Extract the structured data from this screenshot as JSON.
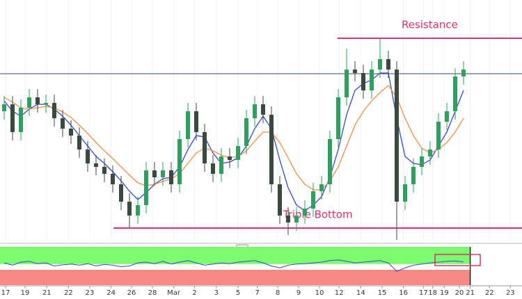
{
  "chart_data": {
    "type": "candlestick",
    "open": [
      185,
      195,
      155,
      190,
      205,
      195,
      197,
      175,
      160,
      150,
      130,
      110,
      105,
      95,
      80,
      55,
      35,
      50,
      100,
      90,
      100,
      80,
      145,
      185,
      155,
      110,
      95,
      120,
      115,
      135,
      175,
      195,
      180,
      80,
      35,
      25,
      35,
      45,
      70,
      80,
      145,
      205,
      245,
      240,
      215,
      245,
      260,
      245,
      55,
      80,
      105,
      120,
      130,
      170,
      185,
      235
    ],
    "high": [
      207,
      207,
      202,
      217,
      217,
      209,
      209,
      187,
      172,
      162,
      142,
      122,
      117,
      107,
      92,
      67,
      62,
      112,
      112,
      112,
      112,
      157,
      197,
      197,
      167,
      122,
      132,
      132,
      147,
      187,
      207,
      207,
      192,
      92,
      47,
      47,
      57,
      82,
      92,
      157,
      217,
      275,
      257,
      252,
      257,
      290,
      272,
      257,
      92,
      117,
      132,
      142,
      182,
      197,
      247,
      257
    ],
    "low": [
      173,
      143,
      143,
      178,
      183,
      183,
      163,
      148,
      138,
      118,
      98,
      93,
      83,
      68,
      43,
      18,
      23,
      38,
      78,
      78,
      68,
      68,
      133,
      143,
      98,
      83,
      83,
      103,
      103,
      123,
      163,
      168,
      68,
      23,
      7,
      13,
      23,
      33,
      58,
      68,
      133,
      193,
      228,
      203,
      203,
      233,
      233,
      0,
      43,
      68,
      93,
      108,
      118,
      158,
      173,
      223
    ],
    "close": [
      195,
      155,
      190,
      205,
      195,
      197,
      175,
      160,
      150,
      130,
      110,
      105,
      95,
      80,
      55,
      35,
      50,
      100,
      90,
      100,
      80,
      145,
      185,
      155,
      110,
      95,
      120,
      115,
      135,
      175,
      195,
      180,
      80,
      35,
      25,
      35,
      45,
      70,
      80,
      145,
      205,
      245,
      240,
      215,
      245,
      260,
      245,
      55,
      80,
      105,
      120,
      130,
      170,
      185,
      235,
      245
    ],
    "up_color": "#2f9e5e",
    "down_color": "#3b4a3f",
    "lines": [
      {
        "color": "#3347d1",
        "values": [
          200,
          185,
          178,
          188,
          195,
          195,
          188,
          178,
          165,
          150,
          135,
          120,
          110,
          98,
          85,
          70,
          58,
          68,
          80,
          88,
          90,
          105,
          130,
          150,
          148,
          125,
          110,
          112,
          118,
          135,
          160,
          178,
          160,
          115,
          75,
          50,
          42,
          50,
          62,
          90,
          130,
          180,
          215,
          225,
          230,
          240,
          240,
          175,
          120,
          110,
          108,
          115,
          135,
          155,
          185,
          215
        ]
      },
      {
        "color": "#ef8f45",
        "values": [
          205,
          198,
          190,
          188,
          190,
          192,
          190,
          184,
          176,
          165,
          153,
          140,
          128,
          117,
          105,
          93,
          82,
          78,
          80,
          84,
          88,
          95,
          110,
          125,
          132,
          128,
          122,
          118,
          120,
          128,
          142,
          155,
          155,
          140,
          118,
          95,
          80,
          72,
          72,
          85,
          105,
          135,
          165,
          185,
          200,
          212,
          222,
          205,
          175,
          150,
          132,
          125,
          130,
          140,
          155,
          175
        ]
      }
    ],
    "ylim": [
      0,
      345
    ],
    "xlim": [
      -0.5,
      62
    ],
    "xticks": [
      {
        "value": 0.17,
        "label": "17"
      },
      {
        "value": 2.5,
        "label": "19"
      },
      {
        "value": 5.1,
        "label": "21"
      },
      {
        "value": 7.7,
        "label": "22"
      },
      {
        "value": 10.25,
        "label": "23"
      },
      {
        "value": 12.8,
        "label": "24"
      },
      {
        "value": 15.25,
        "label": "26"
      },
      {
        "value": 17.75,
        "label": "28"
      },
      {
        "value": 20.3,
        "label": "Mar"
      },
      {
        "value": 22.8,
        "label": "2"
      },
      {
        "value": 25.4,
        "label": "3"
      },
      {
        "value": 28,
        "label": "5"
      },
      {
        "value": 30.3,
        "label": "7"
      },
      {
        "value": 32.75,
        "label": "8"
      },
      {
        "value": 35.25,
        "label": "9"
      },
      {
        "value": 37.75,
        "label": "10"
      },
      {
        "value": 40.1,
        "label": "12"
      },
      {
        "value": 42.7,
        "label": "14"
      },
      {
        "value": 45.25,
        "label": "15"
      },
      {
        "value": 47.8,
        "label": "16"
      },
      {
        "value": 50.2,
        "label": "17"
      },
      {
        "value": 51.3,
        "label": "18"
      },
      {
        "value": 52.7,
        "label": "19"
      },
      {
        "value": 54.5,
        "label": "20"
      },
      {
        "value": 55.8,
        "label": "21"
      },
      {
        "value": 58.1,
        "label": "22"
      },
      {
        "value": 60.6,
        "label": "23"
      }
    ],
    "hline": {
      "value": 239,
      "color": "#33457a"
    },
    "annotations": [
      {
        "text": "Resistance",
        "value": 290,
        "start": 39.9
      },
      {
        "text": "Triple Bottom",
        "value": 17,
        "start": 13.1
      }
    ],
    "annotation_color": "#d8316f",
    "oscillator": {
      "ylim": [
        0,
        100
      ],
      "upper": 55,
      "lower": 40,
      "upper_color": "#7dfa6e",
      "lower_color": "#f88a84",
      "line_color": "#3347d1",
      "values": [
        58,
        52,
        60,
        62,
        56,
        58,
        50,
        53,
        55,
        52,
        56,
        50,
        54,
        52,
        48,
        50,
        58,
        60,
        56,
        62,
        55,
        60,
        64,
        58,
        52,
        55,
        58,
        56,
        60,
        62,
        64,
        58,
        50,
        45,
        52,
        55,
        56,
        58,
        60,
        64,
        66,
        62,
        58,
        60,
        62,
        64,
        58,
        36,
        45,
        52,
        55,
        58,
        60,
        62,
        63,
        61
      ]
    }
  }
}
